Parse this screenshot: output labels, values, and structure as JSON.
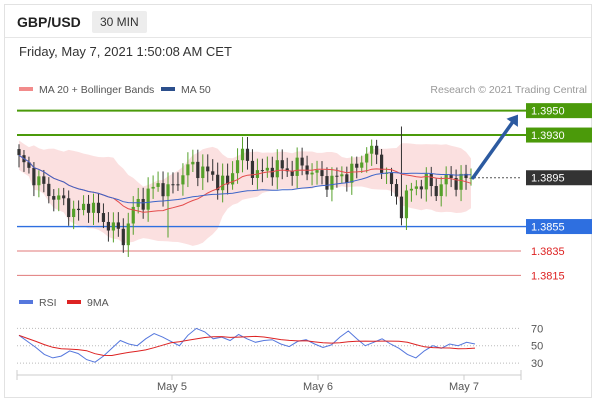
{
  "header": {
    "symbol": "GBP/USD",
    "timeframe": "30 MIN"
  },
  "datetime": "Friday, May 7, 2021 1:50:08 AM CET",
  "legend": {
    "ma_bb": "MA 20 + Bollinger Bands",
    "ma50": "MA 50",
    "rsi": "RSI",
    "ma9": "9MA",
    "credit": "Research © 2021 Trading Central"
  },
  "colors": {
    "candle_up": "#55a02a",
    "candle_down": "#333333",
    "ma20": "#e44b4b",
    "bands_fill": "#f9d6d6",
    "ma50": "#3c64c8",
    "resistance": "#4b9a0a",
    "support": "#2e6fe0",
    "weak_level": "#e07a7a",
    "current": "#333333",
    "arrow": "#2c5aa0",
    "rsi": "#5577dd",
    "rsi_ma": "#dd2222"
  },
  "chart_data": [
    {
      "type": "candlestick",
      "title": "GBP/USD",
      "timeframe": "30 MIN",
      "x_labels": [
        "May 5",
        "May 6",
        "May 7"
      ],
      "y_range": [
        1.3803,
        1.3962
      ],
      "current_price": 1.3895,
      "levels": [
        {
          "value": 1.395,
          "label": "1.3950",
          "kind": "target"
        },
        {
          "value": 1.393,
          "label": "1.3930",
          "kind": "resistance"
        },
        {
          "value": 1.3895,
          "label": "1.3895",
          "kind": "current"
        },
        {
          "value": 1.3855,
          "label": "1.3855",
          "kind": "support"
        },
        {
          "value": 1.3835,
          "label": "1.3835",
          "kind": "support"
        },
        {
          "value": 1.3815,
          "label": "1.3815",
          "kind": "support"
        }
      ],
      "projection": {
        "from": 1.3895,
        "to": 1.395
      },
      "series": [
        {
          "name": "MA 20 + Bollinger Bands",
          "type": "line"
        },
        {
          "name": "MA 50",
          "type": "line"
        }
      ],
      "anchors": [
        1.391,
        1.39,
        1.3888,
        1.388,
        1.3873,
        1.3865,
        1.3875,
        1.3862,
        1.3855,
        1.3846,
        1.3872,
        1.388,
        1.389,
        1.3883,
        1.3898,
        1.3905,
        1.39,
        1.3894,
        1.3888,
        1.3918,
        1.3902,
        1.3898,
        1.3905,
        1.39,
        1.3905,
        1.3902,
        1.3895,
        1.3892,
        1.3898,
        1.39,
        1.3918,
        1.3912,
        1.389,
        1.387,
        1.3888,
        1.3892,
        1.3885,
        1.3895,
        1.3892,
        1.3895
      ]
    },
    {
      "type": "line",
      "title": "RSI",
      "y_ticks": [
        70,
        50,
        30
      ],
      "y_range": [
        22,
        82
      ],
      "series": [
        {
          "name": "RSI"
        },
        {
          "name": "9MA"
        }
      ],
      "values": [
        62,
        55,
        48,
        40,
        36,
        38,
        44,
        41,
        34,
        31,
        38,
        47,
        56,
        52,
        50,
        58,
        64,
        60,
        55,
        50,
        62,
        70,
        66,
        58,
        60,
        56,
        63,
        58,
        54,
        56,
        57,
        52,
        49,
        55,
        57,
        52,
        48,
        51,
        60,
        67,
        58,
        50,
        54,
        58,
        52,
        47,
        40,
        36,
        44,
        50,
        47,
        52,
        50,
        54,
        52
      ]
    }
  ]
}
